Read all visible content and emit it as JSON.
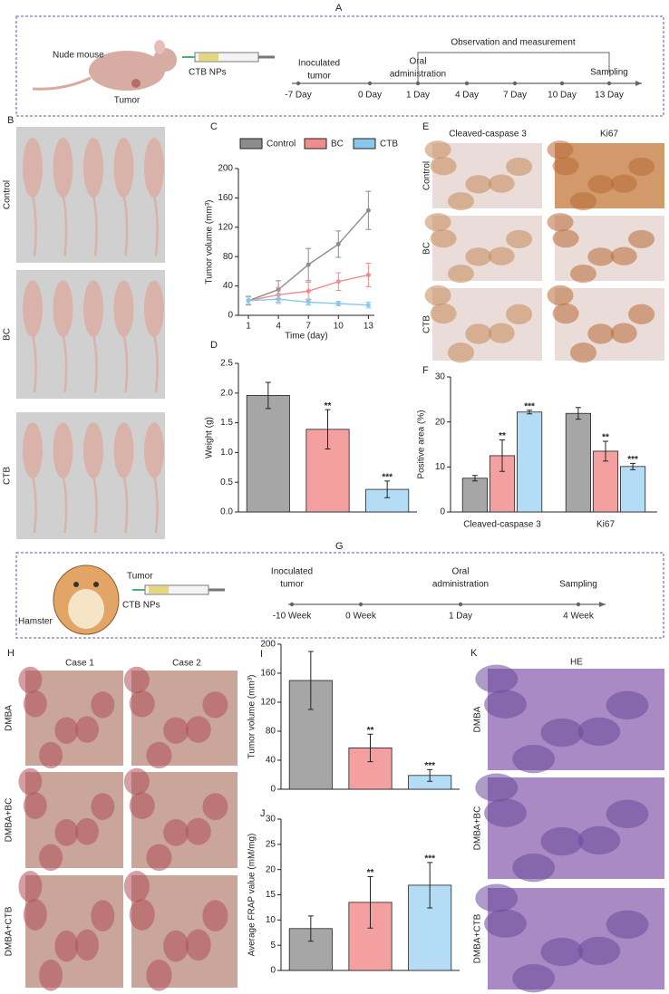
{
  "panel_letters": [
    "A",
    "B",
    "C",
    "D",
    "E",
    "F",
    "G",
    "H",
    "I",
    "J",
    "K"
  ],
  "schematic_a": {
    "animal": "Nude mouse",
    "site": "Tumor",
    "drug": "CTB NPs",
    "bracket": "Observation and measurement",
    "event_labels": [
      [
        "Inoculated",
        "tumor"
      ],
      [
        "Oral",
        "administration"
      ],
      [
        "Sampling"
      ]
    ],
    "ticks": [
      "-7 Day",
      "0 Day",
      "1 Day",
      "4 Day",
      "7 Day",
      "10 Day",
      "13 Day"
    ]
  },
  "mice_photos": {
    "rows": [
      "Control",
      "BC",
      "CTB"
    ]
  },
  "ihc": {
    "columns": [
      "Cleaved-caspase 3",
      "Ki67"
    ],
    "rows": [
      "Control",
      "BC",
      "CTB"
    ]
  },
  "schematic_g": {
    "animal": "Hamster",
    "site": "Tumor",
    "drug": "CTB NPs",
    "event_labels": [
      [
        "Inoculated",
        "tumor"
      ],
      [
        "Oral",
        "administration"
      ],
      [
        "Sampling"
      ]
    ],
    "ticks": [
      "-10 Week",
      "0 Week",
      "1 Day",
      "4 Week"
    ]
  },
  "hamster_photos": {
    "columns": [
      "Case 1",
      "Case 2"
    ],
    "rows": [
      "DMBA",
      "DMBA+BC",
      "DMBA+CTB"
    ]
  },
  "he": {
    "title": "HE",
    "rows": [
      "DMBA",
      "DMBA+BC",
      "DMBA+CTB"
    ]
  },
  "chart_data": [
    {
      "type": "line",
      "x": [
        1,
        4,
        7,
        10,
        13
      ],
      "xlim": [
        0,
        13.6
      ],
      "xticks": [
        1,
        4,
        7,
        10,
        13
      ],
      "ylim": [
        0,
        200
      ],
      "yticks": [
        0,
        40,
        80,
        120,
        160,
        200
      ],
      "xlabel": "Time (day)",
      "ylabel": "Tumor volume (mm³)",
      "series": [
        {
          "name": "Control",
          "color": "#8c8c8c",
          "values": [
            20,
            35,
            69,
            97,
            143
          ],
          "errors": [
            6,
            12,
            22,
            18,
            26
          ]
        },
        {
          "name": "BC",
          "color": "#f08c8c",
          "values": [
            20,
            28,
            33,
            46,
            55
          ],
          "errors": [
            5,
            10,
            12,
            12,
            16
          ]
        },
        {
          "name": "CTB",
          "color": "#88c8ec",
          "values": [
            20,
            22,
            18,
            16,
            14
          ],
          "errors": [
            5,
            6,
            4,
            3,
            4
          ]
        }
      ]
    },
    {
      "type": "bar",
      "values": [
        1.96,
        1.39,
        0.38
      ],
      "errors": [
        0.22,
        0.33,
        0.14
      ],
      "colors": [
        "#a6a6a6",
        "#f4a0a0",
        "#b4dcf4"
      ],
      "significance": [
        null,
        "**",
        "***"
      ],
      "ylabel": "Weight (g)",
      "ylim": [
        0,
        2.5
      ],
      "yticks": [
        {
          "value": 0,
          "label": "0.0"
        },
        0.5,
        {
          "value": 1,
          "label": "1.0"
        },
        1.5,
        {
          "value": 2,
          "label": "2.0"
        },
        2.5
      ]
    },
    {
      "type": "grouped-bar",
      "categories": [
        "Cleaved-caspase 3",
        "Ki67"
      ],
      "ylabel": "Positive area (%)",
      "ylim": [
        0,
        30
      ],
      "yticks": [
        0,
        10,
        20,
        30
      ],
      "series": [
        {
          "color": "#a6a6a6",
          "values": [
            7.5,
            21.9
          ],
          "errors": [
            0.6,
            1.3
          ],
          "significance": [
            null,
            null
          ]
        },
        {
          "color": "#f4a0a0",
          "values": [
            12.5,
            13.5
          ],
          "errors": [
            3.5,
            2.2
          ],
          "significance": [
            "**",
            "**"
          ]
        },
        {
          "color": "#b4dcf4",
          "values": [
            22.2,
            10.1
          ],
          "errors": [
            0.4,
            0.7
          ],
          "significance": [
            "***",
            "***"
          ]
        }
      ]
    },
    {
      "type": "bar",
      "values": [
        150,
        57,
        19
      ],
      "errors": [
        40,
        19,
        8
      ],
      "colors": [
        "#a6a6a6",
        "#f4a0a0",
        "#b4dcf4"
      ],
      "significance": [
        null,
        "**",
        "***"
      ],
      "ylabel": "Tumor volume (mm³)",
      "ylim": [
        0,
        200
      ],
      "yticks": [
        0,
        40,
        80,
        120,
        160,
        200
      ]
    },
    {
      "type": "bar",
      "values": [
        8.3,
        13.5,
        16.9
      ],
      "errors": [
        2.5,
        5.1,
        4.5
      ],
      "colors": [
        "#a6a6a6",
        "#f4a0a0",
        "#b4dcf4"
      ],
      "significance": [
        null,
        "**",
        "***"
      ],
      "ylabel": "Average FRAP value (mM/mg)",
      "ylim": [
        0,
        30
      ],
      "yticks": [
        0,
        5,
        10,
        15,
        20,
        25,
        30
      ]
    }
  ]
}
